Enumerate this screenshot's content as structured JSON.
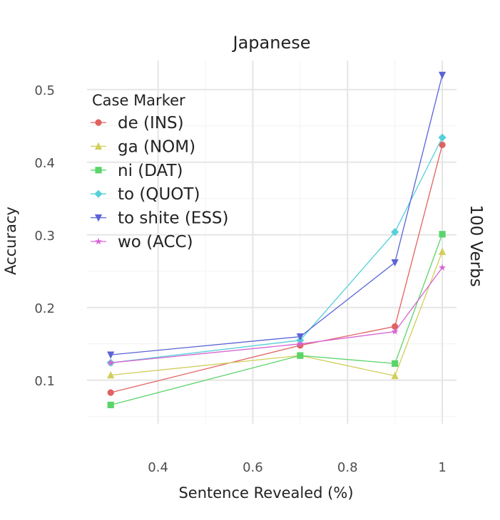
{
  "chart_data": {
    "type": "line",
    "title": "Japanese",
    "xlabel": "Sentence Revealed (%)",
    "ylabel": "Accuracy",
    "facet_label": "100 Verbs",
    "xlim": [
      0.25,
      1.03
    ],
    "ylim": [
      0.04,
      0.54
    ],
    "x_ticks": [
      0.4,
      0.6,
      0.8,
      1
    ],
    "x_tick_labels": [
      "0.4",
      "0.6",
      "0.8",
      "1"
    ],
    "y_ticks": [
      0.1,
      0.2,
      0.3,
      0.4,
      0.5
    ],
    "y_tick_labels": [
      "0.1",
      "0.2",
      "0.3",
      "0.4",
      "0.5"
    ],
    "grid": true,
    "legend": {
      "title": "Case Marker",
      "placement": "top-left"
    },
    "x": [
      0.3,
      0.7,
      0.9,
      1.0
    ],
    "series": [
      {
        "name": "de (INS)",
        "color": "#e0625f",
        "marker": "circle",
        "values": [
          0.083,
          0.148,
          0.174,
          0.424
        ]
      },
      {
        "name": "ga (NOM)",
        "color": "#d0ce5a",
        "marker": "triangle-up",
        "values": [
          0.107,
          0.134,
          0.106,
          0.277
        ]
      },
      {
        "name": "ni (DAT)",
        "color": "#5bd46a",
        "marker": "square",
        "values": [
          0.066,
          0.134,
          0.123,
          0.301
        ]
      },
      {
        "name": "to (QUOT)",
        "color": "#55d0d8",
        "marker": "diamond",
        "values": [
          0.124,
          0.155,
          0.304,
          0.434
        ]
      },
      {
        "name": "to shite (ESS)",
        "color": "#5a63d6",
        "marker": "triangle-down",
        "values": [
          0.135,
          0.16,
          0.262,
          0.52
        ]
      },
      {
        "name": "wo (ACC)",
        "color": "#d863d4",
        "marker": "star",
        "values": [
          0.124,
          0.15,
          0.167,
          0.255
        ]
      }
    ]
  }
}
